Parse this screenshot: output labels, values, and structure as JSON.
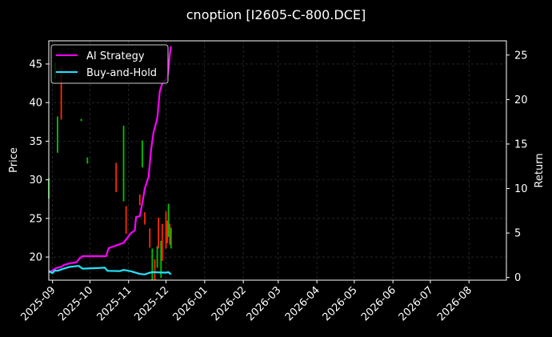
{
  "chart_data": {
    "type": "line",
    "title": "cnoption [I2605-C-800.DCE]",
    "ylabel": "Price",
    "y2label": "Return",
    "ylim": [
      17,
      48
    ],
    "y2lim": [
      -0.3,
      26.6
    ],
    "xlim": [
      "2025-08-29",
      "2026-08-31"
    ],
    "yticks": [
      "20",
      "25",
      "30",
      "35",
      "40",
      "45"
    ],
    "y2ticks": [
      "0",
      "5",
      "10",
      "15",
      "20",
      "25"
    ],
    "xticks": [
      "2025-09",
      "2025-10",
      "2025-11",
      "2025-12",
      "2026-01",
      "2026-02",
      "2026-03",
      "2026-04",
      "2026-05",
      "2026-06",
      "2026-07",
      "2026-08"
    ],
    "grid": true,
    "legend_position": "top-left",
    "colors": {
      "background": "#000000",
      "strategy": "#ff00ff",
      "buyhold": "#22e5ff",
      "up": "#00c400",
      "down": "#ff2a00",
      "grid": "#3d3d3d"
    },
    "series": [
      {
        "name": "AI Strategy",
        "axis": "return",
        "x": [
          "2025-08-29",
          "2025-09-01",
          "2025-09-03",
          "2025-09-05",
          "2025-09-08",
          "2025-09-10",
          "2025-09-15",
          "2025-09-20",
          "2025-09-23",
          "2025-09-25",
          "2025-10-05",
          "2025-10-14",
          "2025-10-16",
          "2025-10-22",
          "2025-10-28",
          "2025-11-03",
          "2025-11-06",
          "2025-11-07",
          "2025-11-10",
          "2025-11-12",
          "2025-11-13",
          "2025-11-14",
          "2025-11-17",
          "2025-11-19",
          "2025-11-21",
          "2025-11-24",
          "2025-11-26",
          "2025-11-28",
          "2025-12-02",
          "2025-12-03",
          "2025-12-04",
          "2025-12-05"
        ],
        "values": [
          0.6,
          0.8,
          1.0,
          1.1,
          1.2,
          1.4,
          1.6,
          1.7,
          2.2,
          2.4,
          2.4,
          2.4,
          3.3,
          3.6,
          3.9,
          5.0,
          5.3,
          6.8,
          6.9,
          8.4,
          9.2,
          10.0,
          11.3,
          14.3,
          16.3,
          17.9,
          20.9,
          21.8,
          22.4,
          23.3,
          25.0,
          26.0
        ]
      },
      {
        "name": "Buy-and-Hold",
        "axis": "return",
        "x": [
          "2025-08-29",
          "2025-09-01",
          "2025-09-03",
          "2025-09-05",
          "2025-09-10",
          "2025-09-15",
          "2025-09-22",
          "2025-09-25",
          "2025-10-05",
          "2025-10-13",
          "2025-10-15",
          "2025-10-25",
          "2025-10-28",
          "2025-11-03",
          "2025-11-10",
          "2025-11-14",
          "2025-11-17",
          "2025-11-20",
          "2025-12-01",
          "2025-12-03",
          "2025-12-05"
        ],
        "values": [
          0.7,
          0.5,
          0.8,
          0.75,
          1.0,
          1.2,
          1.3,
          1.0,
          1.05,
          1.1,
          0.75,
          0.72,
          0.85,
          0.7,
          0.4,
          0.35,
          0.5,
          0.6,
          0.55,
          0.6,
          0.35
        ]
      }
    ],
    "candles": [
      {
        "date": "2025-08-29",
        "low": 27.6,
        "high": 30.2,
        "dir": "up"
      },
      {
        "date": "2025-09-03",
        "low": 43.1,
        "high": 45.2,
        "dir": "up"
      },
      {
        "date": "2025-09-05",
        "low": 33.5,
        "high": 38.2,
        "dir": "up"
      },
      {
        "date": "2025-09-08",
        "low": 37.8,
        "high": 44.6,
        "dir": "down"
      },
      {
        "date": "2025-09-24",
        "low": 37.6,
        "high": 37.9,
        "dir": "up"
      },
      {
        "date": "2025-09-29",
        "low": 32.1,
        "high": 32.9,
        "dir": "up"
      },
      {
        "date": "2025-10-22",
        "low": 28.4,
        "high": 32.2,
        "dir": "down"
      },
      {
        "date": "2025-10-28",
        "low": 27.2,
        "high": 37.0,
        "dir": "up"
      },
      {
        "date": "2025-10-30",
        "low": 23.0,
        "high": 26.6,
        "dir": "down"
      },
      {
        "date": "2025-11-10",
        "low": 26.7,
        "high": 28.1,
        "dir": "down"
      },
      {
        "date": "2025-11-12",
        "low": 31.6,
        "high": 35.1,
        "dir": "up"
      },
      {
        "date": "2025-11-14",
        "low": 24.2,
        "high": 25.8,
        "dir": "down"
      },
      {
        "date": "2025-11-18",
        "low": 21.2,
        "high": 23.7,
        "dir": "down"
      },
      {
        "date": "2025-11-20",
        "low": 17.0,
        "high": 21.1,
        "dir": "up"
      },
      {
        "date": "2025-11-22",
        "low": 17.0,
        "high": 19.7,
        "dir": "down"
      },
      {
        "date": "2025-11-24",
        "low": 18.6,
        "high": 21.4,
        "dir": "up"
      },
      {
        "date": "2025-11-25",
        "low": 21.1,
        "high": 25.1,
        "dir": "down"
      },
      {
        "date": "2025-11-27",
        "low": 17.3,
        "high": 22.1,
        "dir": "up"
      },
      {
        "date": "2025-11-28",
        "low": 19.5,
        "high": 24.3,
        "dir": "down"
      },
      {
        "date": "2025-12-01",
        "low": 21.1,
        "high": 25.9,
        "dir": "down"
      },
      {
        "date": "2025-12-02",
        "low": 21.8,
        "high": 24.7,
        "dir": "down"
      },
      {
        "date": "2025-12-03",
        "low": 22.6,
        "high": 26.9,
        "dir": "up"
      },
      {
        "date": "2025-12-04",
        "low": 21.6,
        "high": 24.3,
        "dir": "down"
      },
      {
        "date": "2025-12-05",
        "low": 21.1,
        "high": 23.8,
        "dir": "up"
      }
    ]
  }
}
